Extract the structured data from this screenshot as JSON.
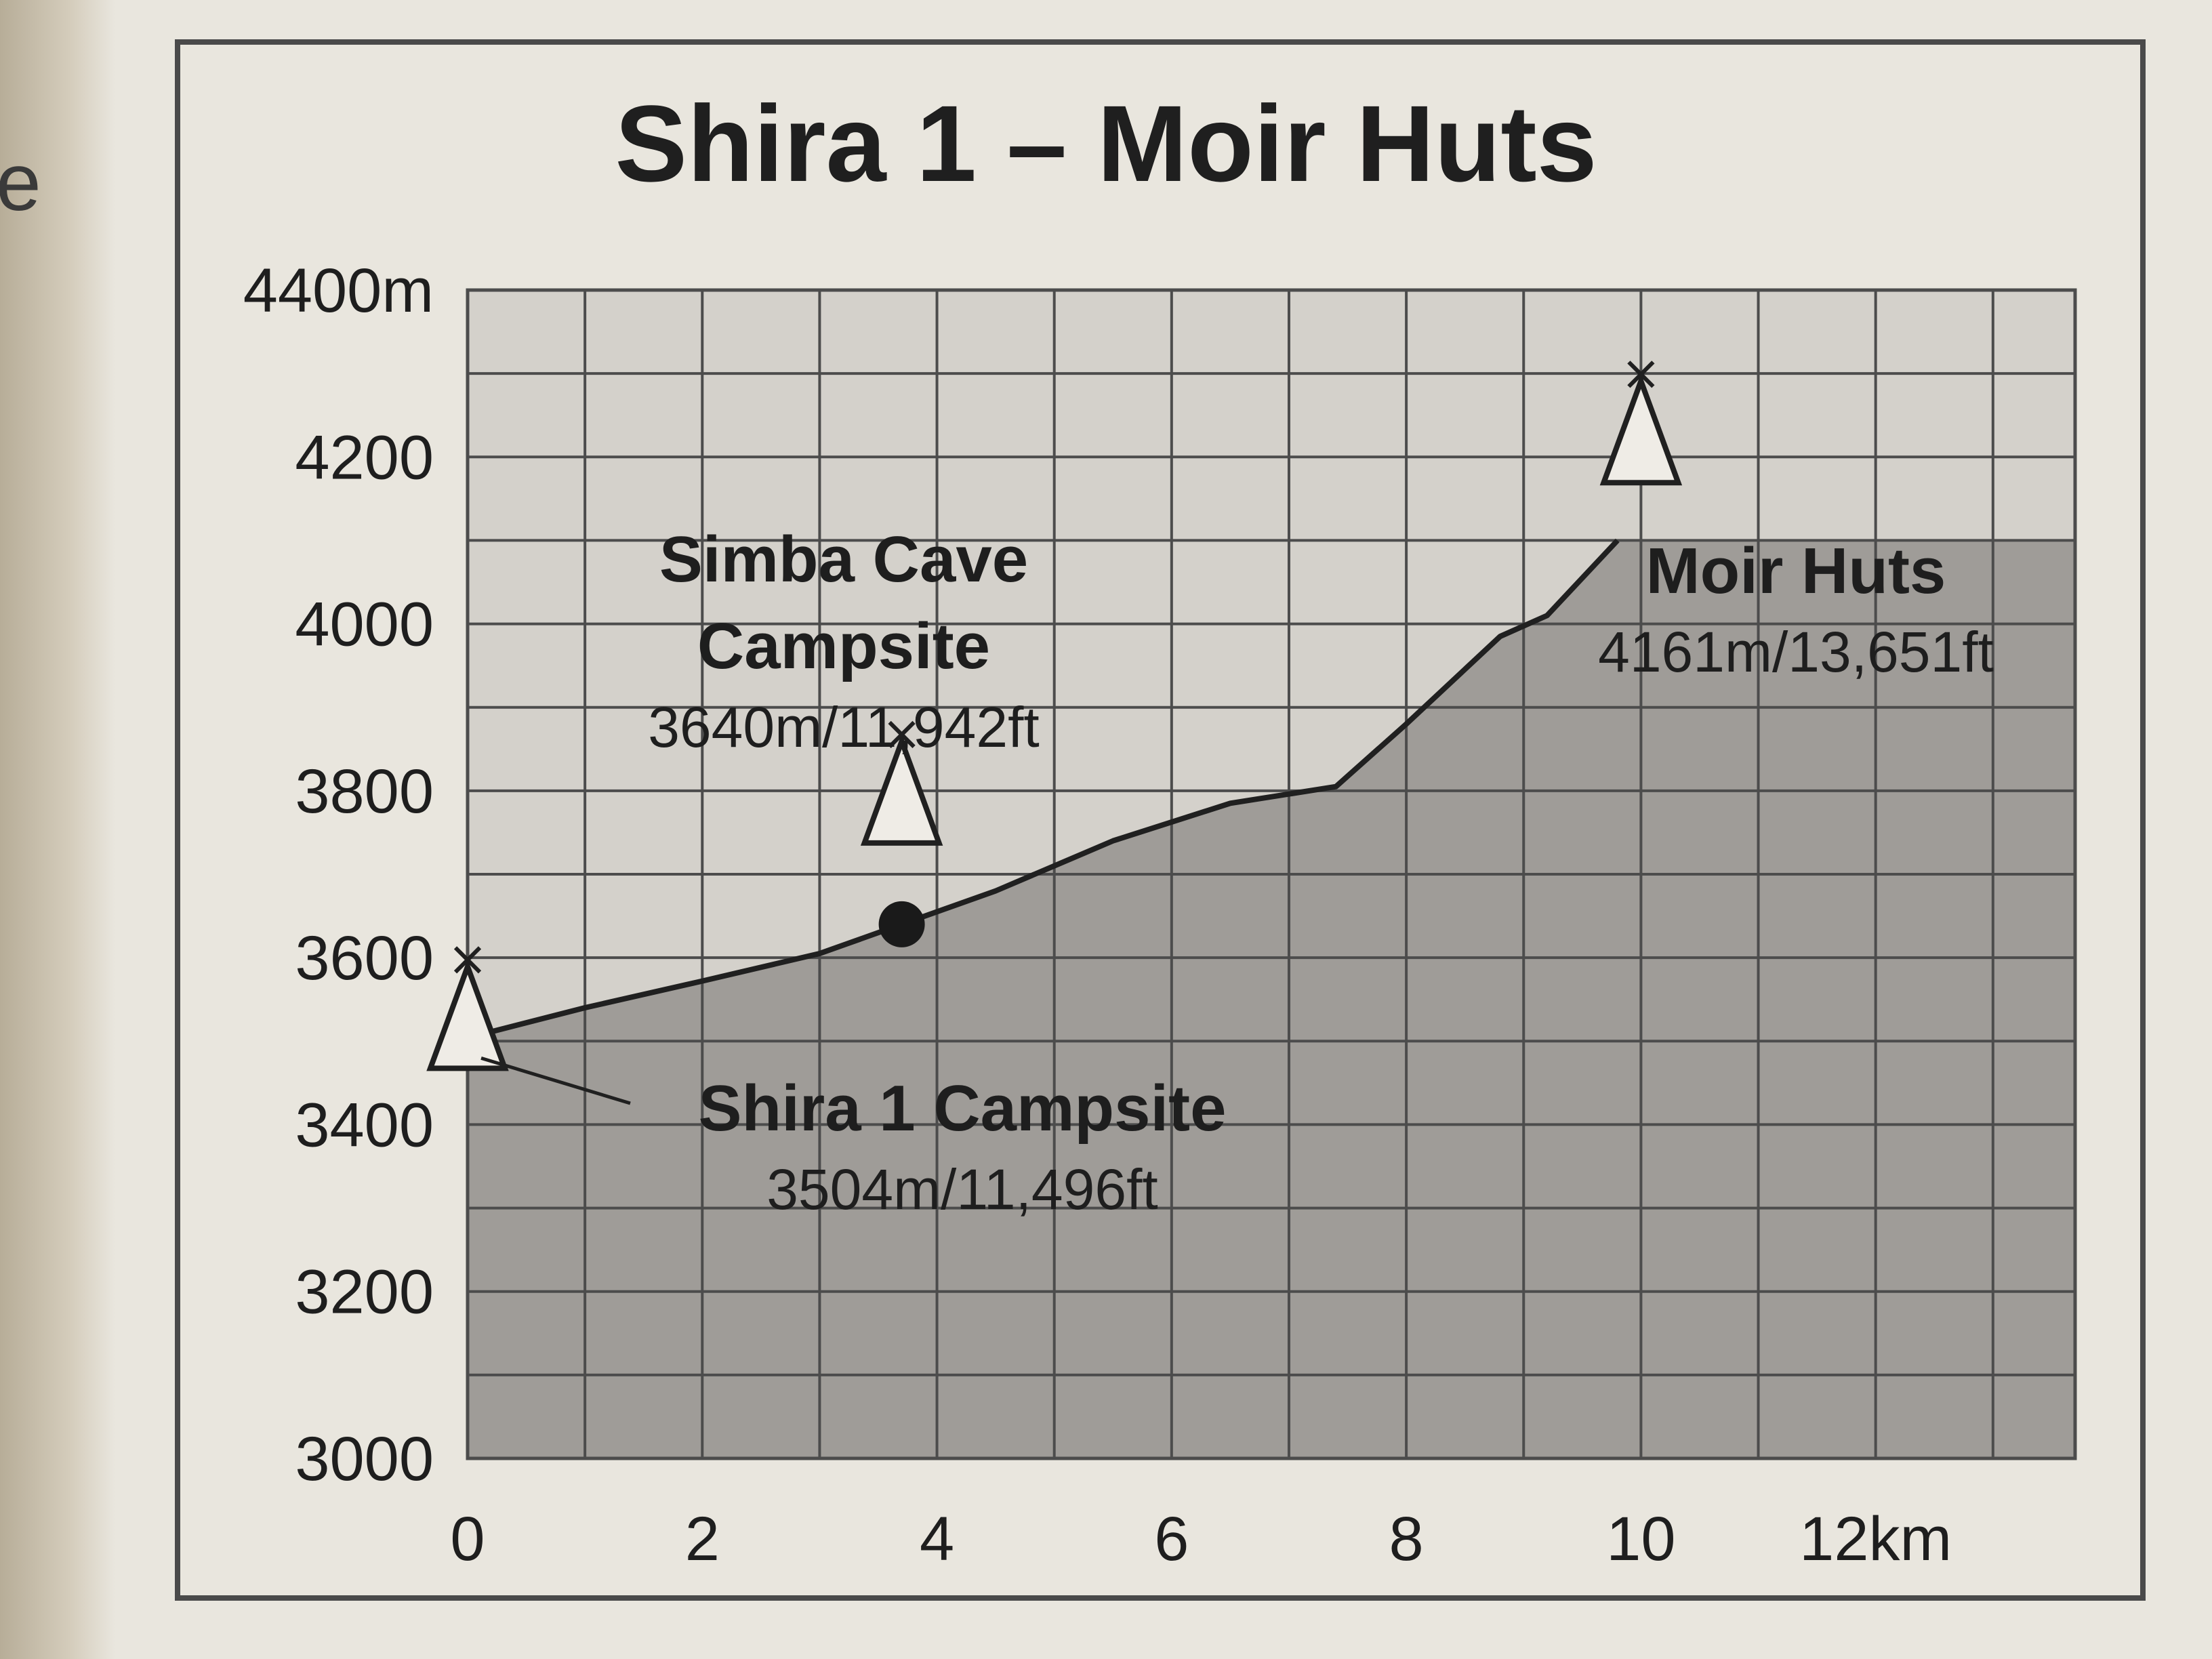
{
  "page": {
    "edge_letter": "e"
  },
  "chart_data": {
    "type": "area",
    "title": "Shira 1 – Moir Huts",
    "xlabel": "",
    "ylabel": "",
    "xlim": [
      0,
      13.7
    ],
    "ylim": [
      3000,
      4400
    ],
    "grid": true,
    "x_ticks": [
      {
        "value": 0,
        "label": "0"
      },
      {
        "value": 2,
        "label": "2"
      },
      {
        "value": 4,
        "label": "4"
      },
      {
        "value": 6,
        "label": "6"
      },
      {
        "value": 8,
        "label": "8"
      },
      {
        "value": 10,
        "label": "10"
      },
      {
        "value": 12,
        "label": "12km"
      }
    ],
    "y_ticks": [
      {
        "value": 3000,
        "label": "3000"
      },
      {
        "value": 3200,
        "label": "3200"
      },
      {
        "value": 3400,
        "label": "3400"
      },
      {
        "value": 3600,
        "label": "3600"
      },
      {
        "value": 3800,
        "label": "3800"
      },
      {
        "value": 4000,
        "label": "4000"
      },
      {
        "value": 4200,
        "label": "4200"
      },
      {
        "value": 4400,
        "label": "4400m"
      }
    ],
    "profile": {
      "x": [
        0,
        1,
        2,
        3,
        3.7,
        4.5,
        5.5,
        6.5,
        7.4,
        8,
        8.8,
        9.2,
        9.8
      ],
      "y": [
        3504,
        3540,
        3572,
        3605,
        3640,
        3680,
        3740,
        3785,
        3805,
        3880,
        3985,
        4010,
        4100
      ]
    },
    "points": [
      {
        "name_lines": [
          "Shira 1 Campsite"
        ],
        "detail": "3504m/11,496ft",
        "x": 0,
        "y": 3504,
        "marker": "tent"
      },
      {
        "name_lines": [
          "Simba Cave",
          "Campsite"
        ],
        "detail": "3640m/11,942ft",
        "x": 3.7,
        "y": 3640,
        "marker": "dot"
      },
      {
        "name_lines": [
          "Moir Huts"
        ],
        "detail": "4161m/13,651ft",
        "x": 10,
        "y": 4161,
        "marker": "tent"
      }
    ],
    "colors": {
      "plot_bg": "#d4d1cb",
      "area_fill": "#9f9c98",
      "grid": "#4c4c4c",
      "line": "#202020",
      "marker_fill": "#efece6"
    }
  }
}
